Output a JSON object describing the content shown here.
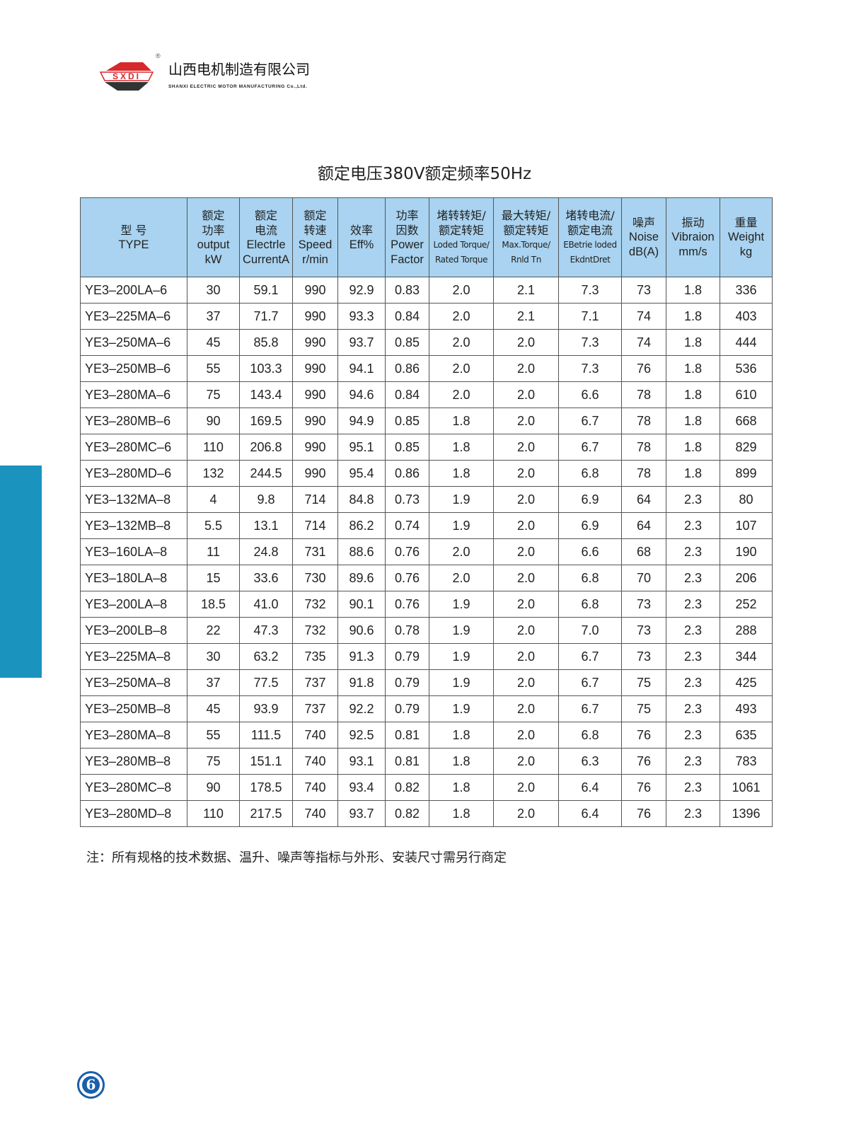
{
  "logo": {
    "mark": "SXDI",
    "reg": "®",
    "name_cn": "山西电机制造有限公司",
    "name_en": "SHANXI ELECTRIC MOTOR MANUFACTURING Co.,Ltd.",
    "brand_red": "#d7282e"
  },
  "title": "额定电压380V额定频率50Hz",
  "colors": {
    "header_bg": "#a9d3f0",
    "side_tab": "#1a93bf",
    "page_circle": "#1b5fa8"
  },
  "table": {
    "headers": [
      {
        "cn": "型 号",
        "en": "TYPE"
      },
      {
        "cn": "额定\n功率",
        "en": "output\nkW"
      },
      {
        "cn": "额定\n电流",
        "en": "Electrle\nCurrentA"
      },
      {
        "cn": "额定\n转速",
        "en": "Speed\nr/min"
      },
      {
        "cn": "效率",
        "en": "Eff%"
      },
      {
        "cn": "功率\n因数",
        "en": "Power\nFactor"
      },
      {
        "cn": "堵转转矩/\n额定转矩",
        "en": "Loded Torque/\nRated Torque"
      },
      {
        "cn": "最大转矩/\n额定转矩",
        "en": "Max.Torque/\nRnld Tn"
      },
      {
        "cn": "堵转电流/\n额定电流",
        "en": "EBetrie loded\nEkdntDret"
      },
      {
        "cn": "噪声",
        "en": "Noise\ndB(A)"
      },
      {
        "cn": "振动",
        "en": "Vibraion\nmm/s"
      },
      {
        "cn": "重量",
        "en": "Weight\nkg"
      }
    ],
    "rows": [
      [
        "YE3–200LA–6",
        "30",
        "59.1",
        "990",
        "92.9",
        "0.83",
        "2.0",
        "2.1",
        "7.3",
        "73",
        "1.8",
        "336"
      ],
      [
        "YE3–225MA–6",
        "37",
        "71.7",
        "990",
        "93.3",
        "0.84",
        "2.0",
        "2.1",
        "7.1",
        "74",
        "1.8",
        "403"
      ],
      [
        "YE3–250MA–6",
        "45",
        "85.8",
        "990",
        "93.7",
        "0.85",
        "2.0",
        "2.0",
        "7.3",
        "74",
        "1.8",
        "444"
      ],
      [
        "YE3–250MB–6",
        "55",
        "103.3",
        "990",
        "94.1",
        "0.86",
        "2.0",
        "2.0",
        "7.3",
        "76",
        "1.8",
        "536"
      ],
      [
        "YE3–280MA–6",
        "75",
        "143.4",
        "990",
        "94.6",
        "0.84",
        "2.0",
        "2.0",
        "6.6",
        "78",
        "1.8",
        "610"
      ],
      [
        "YE3–280MB–6",
        "90",
        "169.5",
        "990",
        "94.9",
        "0.85",
        "1.8",
        "2.0",
        "6.7",
        "78",
        "1.8",
        "668"
      ],
      [
        "YE3–280MC–6",
        "110",
        "206.8",
        "990",
        "95.1",
        "0.85",
        "1.8",
        "2.0",
        "6.7",
        "78",
        "1.8",
        "829"
      ],
      [
        "YE3–280MD–6",
        "132",
        "244.5",
        "990",
        "95.4",
        "0.86",
        "1.8",
        "2.0",
        "6.8",
        "78",
        "1.8",
        "899"
      ],
      [
        "YE3–132MA–8",
        "4",
        "9.8",
        "714",
        "84.8",
        "0.73",
        "1.9",
        "2.0",
        "6.9",
        "64",
        "2.3",
        "80"
      ],
      [
        "YE3–132MB–8",
        "5.5",
        "13.1",
        "714",
        "86.2",
        "0.74",
        "1.9",
        "2.0",
        "6.9",
        "64",
        "2.3",
        "107"
      ],
      [
        "YE3–160LA–8",
        "11",
        "24.8",
        "731",
        "88.6",
        "0.76",
        "2.0",
        "2.0",
        "6.6",
        "68",
        "2.3",
        "190"
      ],
      [
        "YE3–180LA–8",
        "15",
        "33.6",
        "730",
        "89.6",
        "0.76",
        "2.0",
        "2.0",
        "6.8",
        "70",
        "2.3",
        "206"
      ],
      [
        "YE3–200LA–8",
        "18.5",
        "41.0",
        "732",
        "90.1",
        "0.76",
        "1.9",
        "2.0",
        "6.8",
        "73",
        "2.3",
        "252"
      ],
      [
        "YE3–200LB–8",
        "22",
        "47.3",
        "732",
        "90.6",
        "0.78",
        "1.9",
        "2.0",
        "7.0",
        "73",
        "2.3",
        "288"
      ],
      [
        "YE3–225MA–8",
        "30",
        "63.2",
        "735",
        "91.3",
        "0.79",
        "1.9",
        "2.0",
        "6.7",
        "73",
        "2.3",
        "344"
      ],
      [
        "YE3–250MA–8",
        "37",
        "77.5",
        "737",
        "91.8",
        "0.79",
        "1.9",
        "2.0",
        "6.7",
        "75",
        "2.3",
        "425"
      ],
      [
        "YE3–250MB–8",
        "45",
        "93.9",
        "737",
        "92.2",
        "0.79",
        "1.9",
        "2.0",
        "6.7",
        "75",
        "2.3",
        "493"
      ],
      [
        "YE3–280MA–8",
        "55",
        "111.5",
        "740",
        "92.5",
        "0.81",
        "1.8",
        "2.0",
        "6.8",
        "76",
        "2.3",
        "635"
      ],
      [
        "YE3–280MB–8",
        "75",
        "151.1",
        "740",
        "93.1",
        "0.81",
        "1.8",
        "2.0",
        "6.3",
        "76",
        "2.3",
        "783"
      ],
      [
        "YE3–280MC–8",
        "90",
        "178.5",
        "740",
        "93.4",
        "0.82",
        "1.8",
        "2.0",
        "6.4",
        "76",
        "2.3",
        "1061"
      ],
      [
        "YE3–280MD–8",
        "110",
        "217.5",
        "740",
        "93.7",
        "0.82",
        "1.8",
        "2.0",
        "6.4",
        "76",
        "2.3",
        "1396"
      ]
    ]
  },
  "note": "注：所有规格的技术数据、温升、噪声等指标与外形、安装尺寸需另行商定",
  "page_number": "6"
}
